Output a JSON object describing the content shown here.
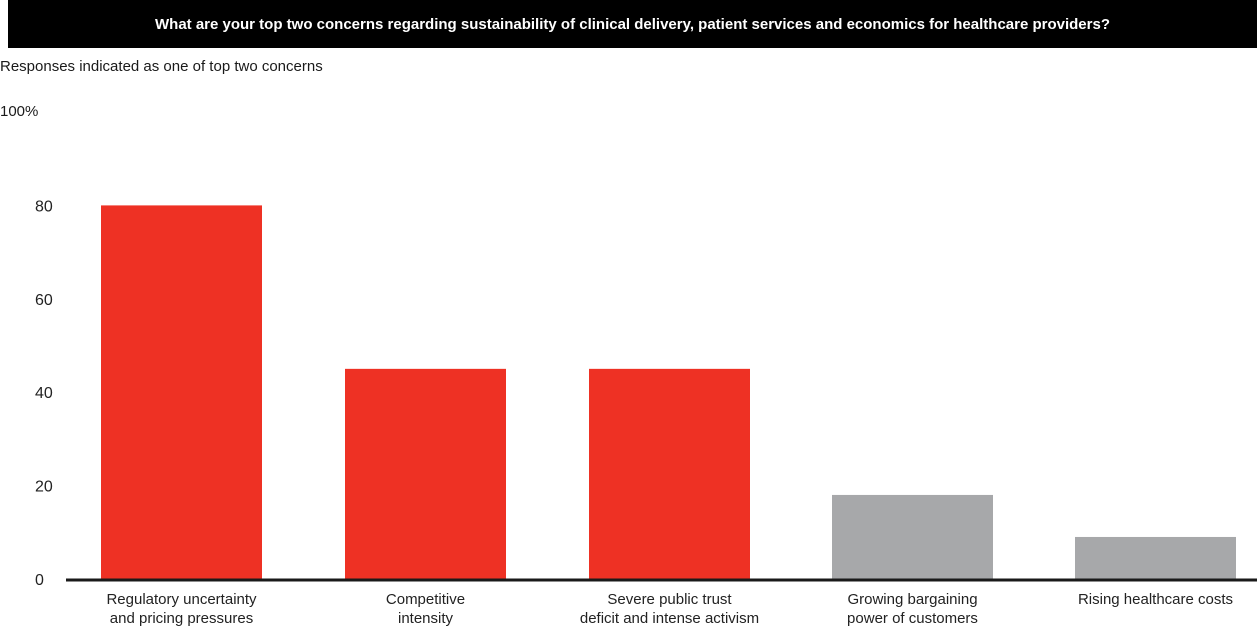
{
  "chart_data": {
    "type": "bar",
    "title": "What are your top two concerns regarding sustainability of clinical delivery, patient services and economics for healthcare providers?",
    "subtitle": "Responses indicated as one of top two concerns",
    "unit_label": "100%",
    "categories": [
      [
        "Regulatory uncertainty",
        "and pricing pressures"
      ],
      [
        "Competitive",
        "intensity"
      ],
      [
        "Severe public trust",
        "deficit and intense activism"
      ],
      [
        "Growing bargaining",
        "power of customers"
      ],
      [
        "Rising healthcare costs"
      ]
    ],
    "values": [
      80,
      45,
      45,
      18,
      9
    ],
    "colors": [
      "#ee3124",
      "#ee3124",
      "#ee3124",
      "#a7a8aa",
      "#a7a8aa"
    ],
    "y_ticks": [
      0,
      20,
      40,
      60,
      80
    ],
    "ylim": [
      0,
      100
    ],
    "grid": false
  }
}
